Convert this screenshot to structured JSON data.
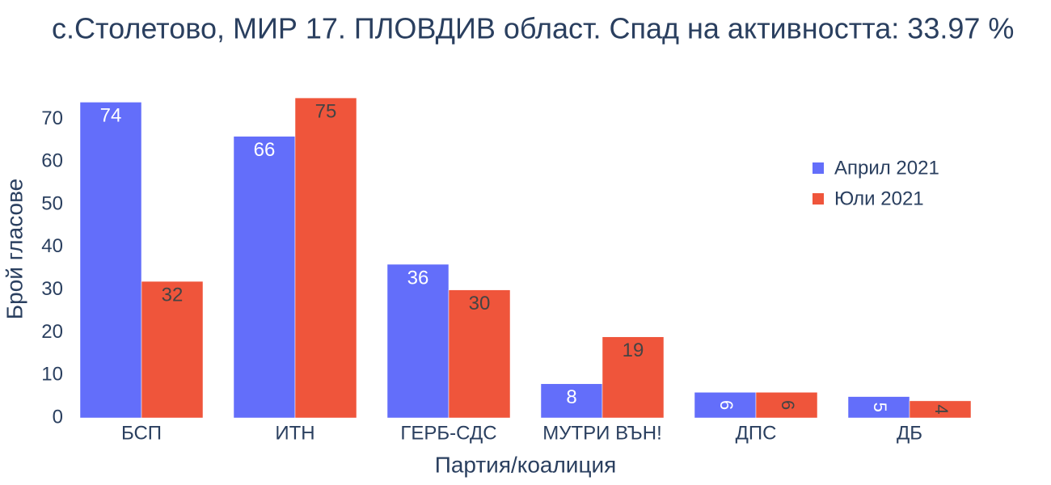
{
  "chart_data": {
    "type": "bar",
    "title": "с.Столетово, МИР 17. ПЛОВДИВ област. Спад на активността: 33.97 %",
    "x_label": "Партия/коалиция",
    "y_label": "Брой гласове",
    "categories": [
      "БСП",
      "ИТН",
      "ГЕРБ-СДС",
      "МУТРИ ВЪН!",
      "ДПС",
      "ДБ"
    ],
    "series": [
      {
        "name": "Април 2021",
        "color": "#636efa",
        "values": [
          74,
          66,
          36,
          8,
          6,
          5
        ]
      },
      {
        "name": "Юли 2021",
        "color": "#ef553b",
        "values": [
          32,
          75,
          30,
          19,
          6,
          4
        ]
      }
    ],
    "ylim": [
      0,
      79
    ],
    "yticks": [
      0,
      10,
      20,
      30,
      40,
      50,
      60,
      70
    ],
    "legend": "top-right"
  }
}
